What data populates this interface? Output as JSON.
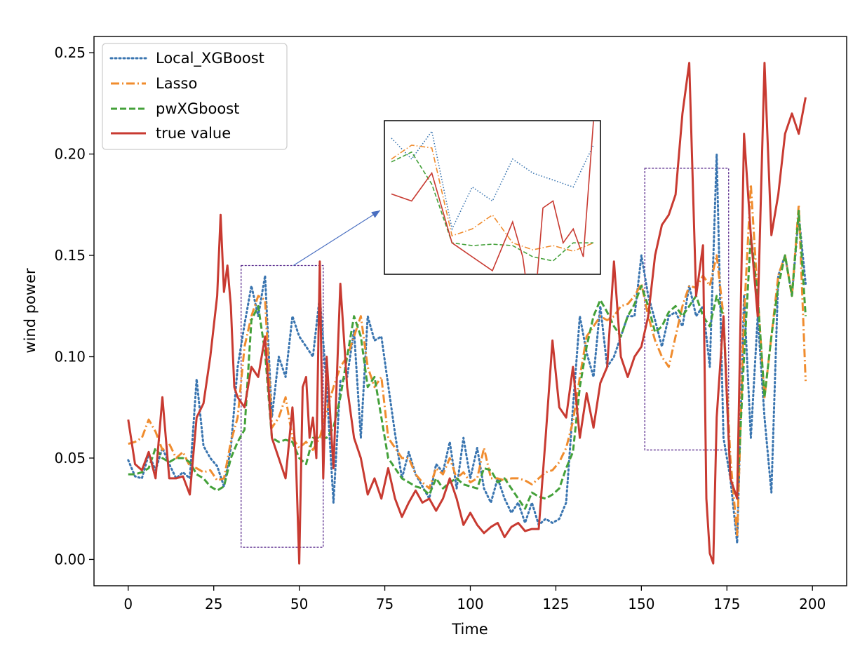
{
  "chart_data": {
    "type": "line",
    "xlabel": "Time",
    "ylabel": "wind power",
    "xlim": [
      -10,
      210
    ],
    "ylim": [
      -0.013,
      0.258
    ],
    "xticks": [
      0,
      25,
      50,
      75,
      100,
      125,
      150,
      175,
      200
    ],
    "yticks": [
      0.0,
      0.05,
      0.1,
      0.15,
      0.2,
      0.25
    ],
    "ytick_labels": [
      "0.00",
      "0.05",
      "0.10",
      "0.15",
      "0.20",
      "0.25"
    ],
    "legend_position": "top-left",
    "grid": false,
    "series": [
      {
        "name": "Local_XGBoost",
        "color": "#3a75b0",
        "dash": "dotted",
        "x": [
          0,
          2,
          4,
          6,
          8,
          10,
          12,
          14,
          16,
          18,
          20,
          22,
          24,
          26,
          28,
          30,
          32,
          34,
          36,
          38,
          40,
          42,
          44,
          46,
          48,
          50,
          52,
          54,
          56,
          58,
          60,
          62,
          64,
          66,
          68,
          70,
          72,
          74,
          76,
          78,
          80,
          82,
          84,
          86,
          88,
          90,
          92,
          94,
          96,
          98,
          100,
          102,
          104,
          106,
          108,
          110,
          112,
          114,
          116,
          118,
          120,
          122,
          124,
          126,
          128,
          130,
          132,
          134,
          136,
          138,
          140,
          142,
          144,
          146,
          148,
          150,
          152,
          154,
          156,
          158,
          160,
          162,
          164,
          166,
          168,
          170,
          172,
          174,
          176,
          178,
          180,
          182,
          184,
          186,
          188,
          190,
          192,
          194,
          196,
          198
        ],
        "values": [
          0.049,
          0.041,
          0.04,
          0.052,
          0.044,
          0.055,
          0.047,
          0.04,
          0.043,
          0.04,
          0.089,
          0.056,
          0.05,
          0.046,
          0.036,
          0.055,
          0.095,
          0.116,
          0.135,
          0.12,
          0.14,
          0.07,
          0.1,
          0.09,
          0.12,
          0.11,
          0.105,
          0.1,
          0.13,
          0.085,
          0.028,
          0.088,
          0.09,
          0.113,
          0.06,
          0.12,
          0.108,
          0.11,
          0.086,
          0.062,
          0.04,
          0.053,
          0.042,
          0.036,
          0.03,
          0.047,
          0.043,
          0.058,
          0.035,
          0.06,
          0.04,
          0.055,
          0.035,
          0.028,
          0.04,
          0.03,
          0.023,
          0.028,
          0.018,
          0.028,
          0.017,
          0.02,
          0.018,
          0.02,
          0.028,
          0.075,
          0.12,
          0.102,
          0.09,
          0.125,
          0.095,
          0.1,
          0.11,
          0.12,
          0.12,
          0.15,
          0.13,
          0.118,
          0.105,
          0.12,
          0.122,
          0.115,
          0.135,
          0.12,
          0.125,
          0.095,
          0.2,
          0.06,
          0.04,
          0.008,
          0.13,
          0.06,
          0.12,
          0.07,
          0.033,
          0.14,
          0.15,
          0.13,
          0.17,
          0.136
        ]
      },
      {
        "name": "Lasso",
        "color": "#f08c2e",
        "dash": "dashdot",
        "x": [
          0,
          2,
          4,
          6,
          8,
          10,
          12,
          14,
          16,
          18,
          20,
          22,
          24,
          26,
          28,
          30,
          32,
          34,
          36,
          38,
          40,
          42,
          44,
          46,
          48,
          50,
          52,
          54,
          56,
          58,
          60,
          62,
          64,
          66,
          68,
          70,
          72,
          74,
          76,
          78,
          80,
          82,
          84,
          86,
          88,
          90,
          92,
          94,
          96,
          98,
          100,
          102,
          104,
          106,
          108,
          110,
          112,
          114,
          116,
          118,
          120,
          122,
          124,
          126,
          128,
          130,
          132,
          134,
          136,
          138,
          140,
          142,
          144,
          146,
          148,
          150,
          152,
          154,
          156,
          158,
          160,
          162,
          164,
          166,
          168,
          170,
          172,
          174,
          176,
          178,
          180,
          182,
          184,
          186,
          188,
          190,
          192,
          194,
          196,
          198
        ],
        "values": [
          0.057,
          0.058,
          0.06,
          0.069,
          0.063,
          0.054,
          0.057,
          0.05,
          0.053,
          0.046,
          0.045,
          0.043,
          0.044,
          0.039,
          0.04,
          0.058,
          0.07,
          0.105,
          0.12,
          0.13,
          0.128,
          0.065,
          0.07,
          0.08,
          0.06,
          0.055,
          0.058,
          0.054,
          0.06,
          0.073,
          0.085,
          0.095,
          0.1,
          0.11,
          0.12,
          0.095,
          0.085,
          0.09,
          0.06,
          0.055,
          0.05,
          0.05,
          0.042,
          0.038,
          0.035,
          0.045,
          0.042,
          0.05,
          0.04,
          0.043,
          0.038,
          0.04,
          0.055,
          0.04,
          0.04,
          0.039,
          0.04,
          0.04,
          0.039,
          0.037,
          0.04,
          0.043,
          0.044,
          0.048,
          0.055,
          0.068,
          0.09,
          0.11,
          0.115,
          0.12,
          0.118,
          0.12,
          0.125,
          0.126,
          0.13,
          0.136,
          0.12,
          0.108,
          0.1,
          0.095,
          0.11,
          0.125,
          0.135,
          0.134,
          0.14,
          0.135,
          0.15,
          0.12,
          0.05,
          0.012,
          0.12,
          0.185,
          0.13,
          0.08,
          0.11,
          0.14,
          0.15,
          0.13,
          0.175,
          0.088
        ]
      },
      {
        "name": "pwXGboost",
        "color": "#44a13a",
        "dash": "dashed",
        "x": [
          0,
          2,
          4,
          6,
          8,
          10,
          12,
          14,
          16,
          18,
          20,
          22,
          24,
          26,
          28,
          30,
          32,
          34,
          36,
          38,
          40,
          42,
          44,
          46,
          48,
          50,
          52,
          54,
          56,
          58,
          60,
          62,
          64,
          66,
          68,
          70,
          72,
          74,
          76,
          78,
          80,
          82,
          84,
          86,
          88,
          90,
          92,
          94,
          96,
          98,
          100,
          102,
          104,
          106,
          108,
          110,
          112,
          114,
          116,
          118,
          120,
          122,
          124,
          126,
          128,
          130,
          132,
          134,
          136,
          138,
          140,
          142,
          144,
          146,
          148,
          150,
          152,
          154,
          156,
          158,
          160,
          162,
          164,
          166,
          168,
          170,
          172,
          174,
          176,
          178,
          180,
          182,
          184,
          186,
          188,
          190,
          192,
          194,
          196,
          198
        ],
        "values": [
          0.042,
          0.042,
          0.043,
          0.045,
          0.055,
          0.05,
          0.048,
          0.05,
          0.05,
          0.048,
          0.042,
          0.04,
          0.036,
          0.034,
          0.036,
          0.05,
          0.058,
          0.064,
          0.118,
          0.125,
          0.102,
          0.06,
          0.058,
          0.059,
          0.058,
          0.05,
          0.047,
          0.06,
          0.06,
          0.06,
          0.065,
          0.08,
          0.1,
          0.12,
          0.11,
          0.085,
          0.09,
          0.07,
          0.05,
          0.045,
          0.04,
          0.038,
          0.036,
          0.035,
          0.032,
          0.04,
          0.035,
          0.038,
          0.04,
          0.037,
          0.036,
          0.035,
          0.045,
          0.044,
          0.038,
          0.04,
          0.035,
          0.03,
          0.025,
          0.033,
          0.031,
          0.03,
          0.032,
          0.035,
          0.045,
          0.053,
          0.085,
          0.105,
          0.12,
          0.128,
          0.122,
          0.115,
          0.11,
          0.12,
          0.126,
          0.135,
          0.125,
          0.112,
          0.115,
          0.122,
          0.125,
          0.12,
          0.125,
          0.13,
          0.12,
          0.115,
          0.13,
          0.12,
          0.04,
          0.03,
          0.1,
          0.16,
          0.13,
          0.08,
          0.11,
          0.135,
          0.15,
          0.13,
          0.172,
          0.12
        ]
      },
      {
        "name": "true value",
        "color": "#c83a31",
        "dash": "solid",
        "x": [
          0,
          2,
          4,
          6,
          8,
          10,
          12,
          14,
          16,
          18,
          20,
          22,
          24,
          26,
          27,
          28,
          29,
          30,
          31,
          32,
          34,
          36,
          38,
          40,
          42,
          44,
          46,
          48,
          49,
          50,
          51,
          52,
          53,
          54,
          55,
          56,
          57,
          58,
          60,
          62,
          64,
          66,
          68,
          70,
          72,
          74,
          76,
          78,
          80,
          82,
          84,
          86,
          88,
          90,
          92,
          94,
          96,
          98,
          100,
          102,
          104,
          106,
          108,
          110,
          112,
          114,
          116,
          118,
          120,
          122,
          124,
          126,
          128,
          130,
          132,
          134,
          136,
          138,
          140,
          142,
          144,
          146,
          148,
          150,
          152,
          154,
          156,
          158,
          160,
          162,
          164,
          166,
          168,
          169,
          170,
          171,
          172,
          174,
          176,
          178,
          180,
          182,
          184,
          186,
          188,
          190,
          192,
          194,
          196,
          198
        ],
        "values": [
          0.069,
          0.047,
          0.044,
          0.053,
          0.04,
          0.08,
          0.04,
          0.04,
          0.041,
          0.032,
          0.07,
          0.077,
          0.1,
          0.13,
          0.17,
          0.132,
          0.145,
          0.125,
          0.085,
          0.08,
          0.075,
          0.095,
          0.09,
          0.11,
          0.06,
          0.05,
          0.04,
          0.075,
          0.05,
          -0.002,
          0.085,
          0.09,
          0.06,
          0.07,
          0.05,
          0.147,
          0.04,
          0.1,
          0.045,
          0.136,
          0.085,
          0.06,
          0.05,
          0.032,
          0.04,
          0.03,
          0.045,
          0.03,
          0.021,
          0.028,
          0.034,
          0.028,
          0.03,
          0.024,
          0.03,
          0.04,
          0.03,
          0.017,
          0.023,
          0.017,
          0.013,
          0.016,
          0.018,
          0.011,
          0.016,
          0.018,
          0.014,
          0.015,
          0.015,
          0.06,
          0.108,
          0.075,
          0.07,
          0.095,
          0.06,
          0.082,
          0.065,
          0.087,
          0.095,
          0.147,
          0.1,
          0.09,
          0.1,
          0.105,
          0.12,
          0.15,
          0.165,
          0.17,
          0.18,
          0.22,
          0.245,
          0.13,
          0.155,
          0.03,
          0.003,
          -0.002,
          0.07,
          0.12,
          0.04,
          0.03,
          0.21,
          0.16,
          0.12,
          0.245,
          0.16,
          0.18,
          0.21,
          0.22,
          0.21,
          0.228
        ]
      }
    ],
    "highlight_boxes": [
      {
        "x0": 33,
        "x1": 57,
        "y0": 0.006,
        "y1": 0.145,
        "color": "#5b2d8e"
      },
      {
        "x0": 151,
        "x1": 175.5,
        "y0": 0.054,
        "y1": 0.193,
        "color": "#5b2d8e"
      }
    ],
    "inset": {
      "zoom_x_range": [
        36,
        56
      ],
      "zoom_y_range": [
        0.045,
        0.14
      ],
      "arrow_color": "#4a6fc1"
    }
  }
}
